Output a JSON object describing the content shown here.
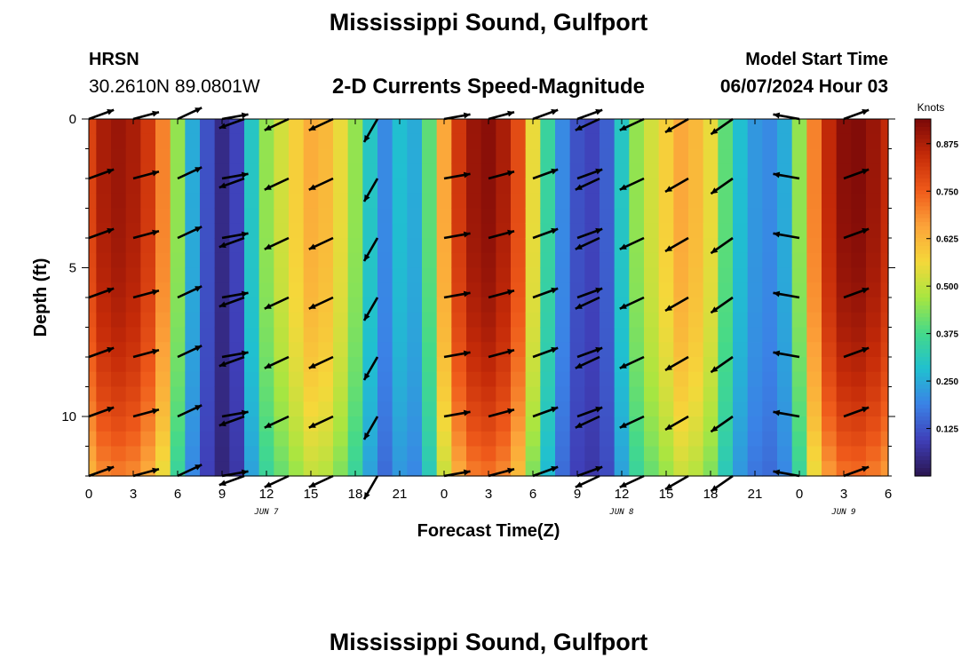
{
  "header": {
    "title": "Mississippi Sound, Gulfport",
    "station": "HRSN",
    "latlon": "30.2610N  89.0801W",
    "product": "2-D Currents Speed-Magnitude",
    "model_start_label": "Model Start Time",
    "model_start_value": "06/07/2024 Hour 03"
  },
  "footer": {
    "title": "Mississippi Sound, Gulfport"
  },
  "chart_data": {
    "type": "heatmap",
    "xlabel": "Forecast Time(Z)",
    "ylabel": "Depth (ft)",
    "x_ticks": [
      "0",
      "3",
      "6",
      "9",
      "12",
      "15",
      "18",
      "21",
      "0",
      "3",
      "6",
      "9",
      "12",
      "15",
      "18",
      "21",
      "0",
      "3",
      "6"
    ],
    "day_labels": [
      {
        "label": "JUN 7",
        "hour": 12
      },
      {
        "label": "JUN 8",
        "hour": 36
      },
      {
        "label": "JUN 9",
        "hour": 51
      }
    ],
    "xlim": [
      0,
      54
    ],
    "y_ticks": [
      0,
      5,
      10
    ],
    "ylim": [
      12,
      0
    ],
    "colorbar": {
      "label": "Knots",
      "ticks": [
        "0.875",
        "0.750",
        "0.625",
        "0.500",
        "0.375",
        "0.250",
        "0.125"
      ],
      "tick_values": [
        0.875,
        0.75,
        0.625,
        0.5,
        0.375,
        0.25,
        0.125
      ],
      "range": [
        0.0,
        0.94
      ],
      "colors": [
        "#2a1550",
        "#3f3fb8",
        "#3b82e6",
        "#20c0d0",
        "#44d98a",
        "#a8e640",
        "#f5d83a",
        "#fca33a",
        "#ef5a1a",
        "#c42a08",
        "#7a0808"
      ]
    },
    "speed_profile": {
      "hours": [
        0,
        1,
        2,
        3,
        4,
        5,
        6,
        7,
        8,
        9,
        10,
        11,
        12,
        13,
        14,
        15,
        16,
        17,
        18,
        19,
        20,
        21,
        22,
        23,
        24,
        25,
        26,
        27,
        28,
        29,
        30,
        31,
        32,
        33,
        34,
        35,
        36,
        37,
        38,
        39,
        40,
        41,
        42,
        43,
        44,
        45,
        46,
        47,
        48,
        49,
        50,
        51,
        52,
        53,
        54
      ],
      "knots": [
        0.8,
        0.88,
        0.9,
        0.88,
        0.82,
        0.7,
        0.45,
        0.25,
        0.12,
        0.05,
        0.1,
        0.3,
        0.45,
        0.52,
        0.58,
        0.64,
        0.62,
        0.55,
        0.45,
        0.3,
        0.2,
        0.28,
        0.25,
        0.4,
        0.65,
        0.82,
        0.9,
        0.92,
        0.88,
        0.78,
        0.55,
        0.35,
        0.2,
        0.12,
        0.1,
        0.14,
        0.3,
        0.45,
        0.52,
        0.58,
        0.65,
        0.62,
        0.55,
        0.4,
        0.28,
        0.22,
        0.2,
        0.25,
        0.45,
        0.7,
        0.85,
        0.92,
        0.93,
        0.9,
        0.85
      ]
    },
    "vector_depths_ft": [
      0,
      2,
      4,
      6,
      8,
      10,
      12
    ],
    "vector_times_h": [
      0,
      3,
      6,
      9,
      10.5,
      13.5,
      16.5,
      19.5,
      24,
      27,
      30,
      33,
      34.5,
      37.5,
      40.5,
      43.5,
      48,
      51
    ],
    "vector_directions_deg": [
      20,
      15,
      25,
      10,
      200,
      205,
      205,
      240,
      10,
      15,
      20,
      20,
      205,
      205,
      210,
      215,
      170,
      20
    ]
  }
}
